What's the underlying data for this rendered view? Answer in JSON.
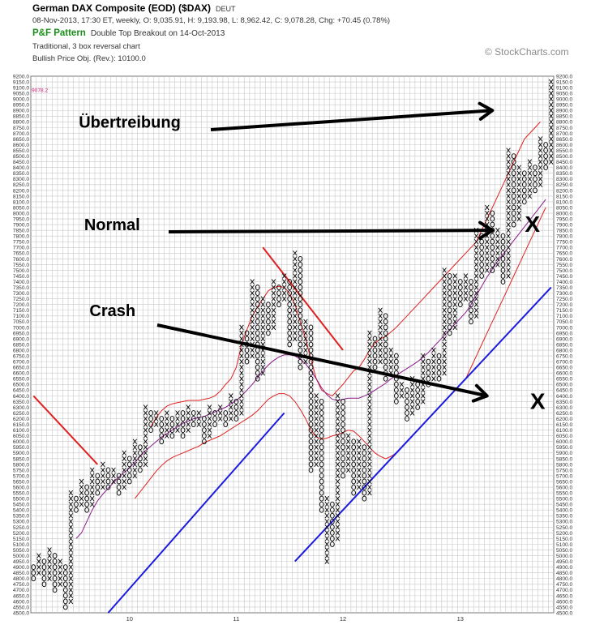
{
  "header": {
    "title": "German DAX Composite (EOD) ($DAX)",
    "exchange": "DEUT",
    "quote": "08-Nov-2013, 17:30 ET, weekly, O: 9,035.91, H: 9,193.98, L: 8,962.42, C: 9,078.28, Chg: +70.45 (0.78%)",
    "pattern_label": "P&F Pattern",
    "pattern_text": "Double Top Breakout on 14-Oct-2013",
    "method": "Traditional, 3 box reversal chart",
    "target": "Bullish Price Obj. (Rev.): 10100.0",
    "credit": "© StockCharts.com"
  },
  "chart_data": {
    "type": "point-and-figure",
    "box_size": 50,
    "reversal": 3,
    "ylim": [
      4500,
      9200
    ],
    "y_ticks": [
      4500,
      4550,
      4600,
      4650,
      4700,
      4750,
      4800,
      4850,
      4900,
      4950,
      5000,
      5050,
      5100,
      5150,
      5200,
      5250,
      5300,
      5350,
      5400,
      5450,
      5500,
      5550,
      5600,
      5650,
      5700,
      5750,
      5800,
      5850,
      5900,
      5950,
      6000,
      6050,
      6100,
      6150,
      6200,
      6250,
      6300,
      6350,
      6400,
      6450,
      6500,
      6550,
      6600,
      6650,
      6700,
      6750,
      6800,
      6850,
      6900,
      6950,
      7000,
      7050,
      7100,
      7150,
      7200,
      7250,
      7300,
      7350,
      7400,
      7450,
      7500,
      7550,
      7600,
      7650,
      7700,
      7750,
      7800,
      7850,
      7900,
      7950,
      8000,
      8050,
      8100,
      8150,
      8200,
      8250,
      8300,
      8350,
      8400,
      8450,
      8500,
      8550,
      8600,
      8650,
      8700,
      8750,
      8800,
      8850,
      8900,
      8950,
      9000,
      9050,
      9100,
      9150,
      9200
    ],
    "x_ticks": [
      {
        "label": "10",
        "column": 18
      },
      {
        "label": "11",
        "column": 38
      },
      {
        "label": "12",
        "column": 58
      },
      {
        "label": "13",
        "column": 80
      }
    ],
    "last_price": 9078.2,
    "last_price_label": "9078.2",
    "columns": [
      {
        "type": "O",
        "high": 4900,
        "low": 4800
      },
      {
        "type": "X",
        "high": 5000,
        "low": 4850
      },
      {
        "type": "O",
        "high": 4950,
        "low": 4750
      },
      {
        "type": "X",
        "high": 5050,
        "low": 4800
      },
      {
        "type": "O",
        "high": 5000,
        "low": 4700
      },
      {
        "type": "X",
        "high": 4950,
        "low": 4750
      },
      {
        "type": "O",
        "high": 4900,
        "low": 4550
      },
      {
        "type": "X",
        "high": 5550,
        "low": 4600
      },
      {
        "type": "O",
        "high": 5500,
        "low": 5400
      },
      {
        "type": "X",
        "high": 5650,
        "low": 5450
      },
      {
        "type": "O",
        "high": 5600,
        "low": 5400
      },
      {
        "type": "X",
        "high": 5750,
        "low": 5450
      },
      {
        "type": "O",
        "high": 5700,
        "low": 5550
      },
      {
        "type": "X",
        "high": 5800,
        "low": 5600
      },
      {
        "type": "O",
        "high": 5750,
        "low": 5600
      },
      {
        "type": "X",
        "high": 5750,
        "low": 5650
      },
      {
        "type": "O",
        "high": 5700,
        "low": 5550
      },
      {
        "type": "X",
        "high": 5900,
        "low": 5600
      },
      {
        "type": "O",
        "high": 5850,
        "low": 5650
      },
      {
        "type": "X",
        "high": 6000,
        "low": 5700
      },
      {
        "type": "O",
        "high": 5950,
        "low": 5750
      },
      {
        "type": "X",
        "high": 6300,
        "low": 5800
      },
      {
        "type": "O",
        "high": 6250,
        "low": 6100
      },
      {
        "type": "X",
        "high": 6250,
        "low": 6150
      },
      {
        "type": "O",
        "high": 6200,
        "low": 6000
      },
      {
        "type": "X",
        "high": 6250,
        "low": 6050
      },
      {
        "type": "O",
        "high": 6200,
        "low": 6050
      },
      {
        "type": "X",
        "high": 6250,
        "low": 6100
      },
      {
        "type": "O",
        "high": 6250,
        "low": 6050
      },
      {
        "type": "X",
        "high": 6300,
        "low": 6100
      },
      {
        "type": "O",
        "high": 6250,
        "low": 6150
      },
      {
        "type": "X",
        "high": 6250,
        "low": 6150
      },
      {
        "type": "O",
        "high": 6200,
        "low": 6000
      },
      {
        "type": "X",
        "high": 6300,
        "low": 6050
      },
      {
        "type": "O",
        "high": 6250,
        "low": 6150
      },
      {
        "type": "X",
        "high": 6300,
        "low": 6200
      },
      {
        "type": "O",
        "high": 6250,
        "low": 6150
      },
      {
        "type": "X",
        "high": 6400,
        "low": 6200
      },
      {
        "type": "O",
        "high": 6350,
        "low": 6200
      },
      {
        "type": "X",
        "high": 7000,
        "low": 6250
      },
      {
        "type": "O",
        "high": 6950,
        "low": 6700
      },
      {
        "type": "X",
        "high": 7400,
        "low": 6750
      },
      {
        "type": "O",
        "high": 7350,
        "low": 6550
      },
      {
        "type": "X",
        "high": 7250,
        "low": 6600
      },
      {
        "type": "O",
        "high": 7200,
        "low": 6950
      },
      {
        "type": "X",
        "high": 7400,
        "low": 7000
      },
      {
        "type": "O",
        "high": 7350,
        "low": 7200
      },
      {
        "type": "X",
        "high": 7450,
        "low": 7250
      },
      {
        "type": "O",
        "high": 7400,
        "low": 6850
      },
      {
        "type": "X",
        "high": 7650,
        "low": 6900
      },
      {
        "type": "O",
        "high": 7600,
        "low": 6650
      },
      {
        "type": "X",
        "high": 7050,
        "low": 6700
      },
      {
        "type": "O",
        "high": 7000,
        "low": 5750
      },
      {
        "type": "X",
        "high": 6400,
        "low": 5800
      },
      {
        "type": "O",
        "high": 6350,
        "low": 5400
      },
      {
        "type": "X",
        "high": 5500,
        "low": 4950
      },
      {
        "type": "O",
        "high": 5450,
        "low": 5100
      },
      {
        "type": "X",
        "high": 6400,
        "low": 5150
      },
      {
        "type": "O",
        "high": 6350,
        "low": 5700
      },
      {
        "type": "X",
        "high": 6050,
        "low": 5750
      },
      {
        "type": "O",
        "high": 6000,
        "low": 5550
      },
      {
        "type": "X",
        "high": 6000,
        "low": 5600
      },
      {
        "type": "O",
        "high": 5950,
        "low": 5500
      },
      {
        "type": "X",
        "high": 6950,
        "low": 5550
      },
      {
        "type": "O",
        "high": 6900,
        "low": 6650
      },
      {
        "type": "X",
        "high": 7150,
        "low": 6700
      },
      {
        "type": "O",
        "high": 7100,
        "low": 6550
      },
      {
        "type": "X",
        "high": 6800,
        "low": 6600
      },
      {
        "type": "O",
        "high": 6750,
        "low": 6350
      },
      {
        "type": "X",
        "high": 6500,
        "low": 6400
      },
      {
        "type": "O",
        "high": 6450,
        "low": 6200
      },
      {
        "type": "X",
        "high": 6550,
        "low": 6250
      },
      {
        "type": "O",
        "high": 6500,
        "low": 6300
      },
      {
        "type": "X",
        "high": 6750,
        "low": 6350
      },
      {
        "type": "O",
        "high": 6700,
        "low": 6500
      },
      {
        "type": "X",
        "high": 6800,
        "low": 6550
      },
      {
        "type": "O",
        "high": 6750,
        "low": 6550
      },
      {
        "type": "X",
        "high": 7500,
        "low": 6600
      },
      {
        "type": "O",
        "high": 7450,
        "low": 6950
      },
      {
        "type": "X",
        "high": 7450,
        "low": 7000
      },
      {
        "type": "O",
        "high": 7400,
        "low": 7200
      },
      {
        "type": "X",
        "high": 7450,
        "low": 7250
      },
      {
        "type": "O",
        "high": 7400,
        "low": 7050
      },
      {
        "type": "X",
        "high": 7850,
        "low": 7100
      },
      {
        "type": "O",
        "high": 7800,
        "low": 7450
      },
      {
        "type": "X",
        "high": 8050,
        "low": 7500
      },
      {
        "type": "O",
        "high": 8000,
        "low": 7500
      },
      {
        "type": "X",
        "high": 7850,
        "low": 7550
      },
      {
        "type": "O",
        "high": 7800,
        "low": 7400
      },
      {
        "type": "X",
        "high": 8550,
        "low": 7450
      },
      {
        "type": "O",
        "high": 8500,
        "low": 7900
      },
      {
        "type": "X",
        "high": 8400,
        "low": 7950
      },
      {
        "type": "O",
        "high": 8350,
        "low": 8100
      },
      {
        "type": "X",
        "high": 8450,
        "low": 8150
      },
      {
        "type": "O",
        "high": 8400,
        "low": 8200
      },
      {
        "type": "X",
        "high": 8650,
        "low": 8250
      },
      {
        "type": "O",
        "high": 8600,
        "low": 8400
      },
      {
        "type": "X",
        "high": 9150,
        "low": 8450
      }
    ],
    "overlays": [
      {
        "name": "upper-band",
        "color": "#e02020",
        "values": [
          null,
          null,
          null,
          null,
          null,
          null,
          null,
          null,
          null,
          null,
          null,
          null,
          null,
          null,
          null,
          null,
          null,
          null,
          null,
          null,
          null,
          null,
          6130,
          6210,
          6270,
          6310,
          6330,
          6340,
          6350,
          6360,
          6360,
          6360,
          6370,
          6380,
          6400,
          6440,
          6500,
          6550,
          6650,
          6850,
          6980,
          7100,
          7180,
          7250,
          7320,
          7350,
          7360,
          7350,
          7300,
          7200,
          7050,
          6900,
          6720,
          6550,
          6450,
          6420,
          6400,
          6450,
          6500,
          6560,
          6620,
          6650,
          6720,
          6800,
          6860,
          6900,
          6920,
          6960,
          7000,
          7050,
          7100,
          7150,
          7200,
          7250,
          7300,
          7350,
          7400,
          7450,
          7500,
          7550,
          7600,
          7650,
          7700,
          7750,
          7850,
          7950,
          8050,
          8150,
          8250,
          8350,
          8450,
          8550,
          8650,
          8700,
          8750,
          8800
        ]
      },
      {
        "name": "moving-average",
        "color": "#8a1a8a",
        "values": [
          null,
          null,
          null,
          null,
          null,
          null,
          null,
          null,
          5150,
          5200,
          5300,
          5400,
          5480,
          5540,
          5590,
          5640,
          5690,
          5730,
          5770,
          5820,
          5870,
          5920,
          5960,
          6000,
          6040,
          6070,
          6100,
          6130,
          6160,
          6180,
          6200,
          6210,
          6220,
          6240,
          6260,
          6280,
          6300,
          6330,
          6360,
          6400,
          6450,
          6500,
          6560,
          6620,
          6670,
          6710,
          6740,
          6760,
          6760,
          6750,
          6720,
          6680,
          6620,
          6550,
          6470,
          6410,
          6370,
          6360,
          6370,
          6380,
          6380,
          6380,
          6400,
          6420,
          6450,
          6480,
          6510,
          6550,
          6580,
          6610,
          6640,
          6670,
          6700,
          6740,
          6780,
          6830,
          6880,
          6930,
          6980,
          7030,
          7080,
          7130,
          7200,
          7280,
          7360,
          7440,
          7510,
          7580,
          7640,
          7700,
          7760,
          7820,
          7880,
          7940,
          8000,
          8060,
          8120
        ]
      },
      {
        "name": "lower-band",
        "color": "#e02020",
        "values": [
          null,
          null,
          null,
          null,
          null,
          null,
          null,
          null,
          null,
          null,
          null,
          null,
          null,
          null,
          null,
          null,
          null,
          null,
          null,
          5500,
          5560,
          5620,
          5680,
          5740,
          5790,
          5830,
          5860,
          5880,
          5900,
          5920,
          5940,
          5960,
          5990,
          6010,
          6030,
          6050,
          6080,
          6110,
          6140,
          6170,
          6200,
          6230,
          6270,
          6320,
          6370,
          6400,
          6420,
          6420,
          6400,
          6350,
          6280,
          6200,
          6100,
          6040,
          6020,
          6030,
          6050,
          6060,
          6080,
          6100,
          6090,
          6050,
          6000,
          5950,
          5900,
          5870,
          5850,
          5870,
          5900,
          5950,
          6000,
          6050,
          6100,
          6150,
          6200,
          6250,
          6300,
          6350,
          6400,
          6450,
          6500,
          6550,
          6650,
          6750,
          6850,
          6950,
          7050,
          7150,
          7250,
          7350,
          7450,
          7550,
          7650,
          7750,
          7850,
          7950,
          8050
        ]
      }
    ],
    "trend_lines": [
      {
        "name": "bearish-resistance-1",
        "color": "#e02020",
        "points": [
          [
            0,
            6400
          ],
          [
            12,
            5800
          ]
        ]
      },
      {
        "name": "bullish-support-1",
        "color": "#1a1ae0",
        "points": [
          [
            14,
            4500
          ],
          [
            47,
            6250
          ]
        ]
      },
      {
        "name": "bearish-resistance-2",
        "color": "#e02020",
        "points": [
          [
            43,
            7700
          ],
          [
            58,
            6800
          ]
        ]
      },
      {
        "name": "bullish-support-2",
        "color": "#1a1ae0",
        "points": [
          [
            49,
            4950
          ],
          [
            97,
            7350
          ]
        ]
      }
    ],
    "annotations": [
      {
        "text": "Übertreibung",
        "column": 9,
        "price": 8750,
        "arrow_to": [
          86,
          8900
        ]
      },
      {
        "text": "Normal",
        "column": 10,
        "price": 7850,
        "arrow_to": [
          86,
          7850
        ]
      },
      {
        "text": "Crash",
        "column": 11,
        "price": 7100,
        "arrow_to": [
          85,
          6400
        ]
      }
    ],
    "x_markers": [
      {
        "text": "X",
        "column": 93.5,
        "price": 7900
      },
      {
        "text": "X",
        "column": 94.5,
        "price": 6350
      }
    ]
  }
}
